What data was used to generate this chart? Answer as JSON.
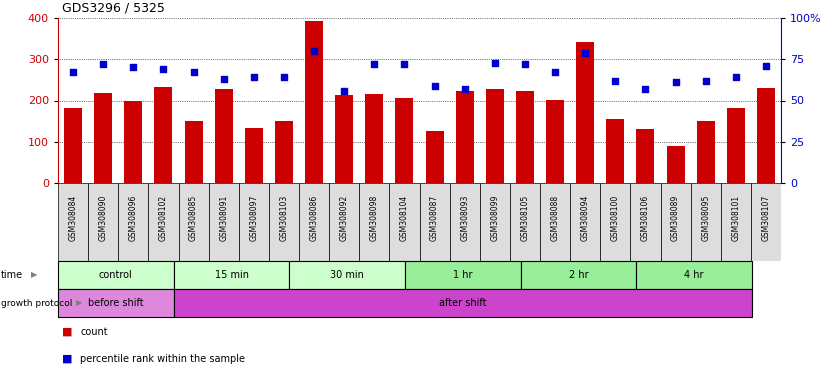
{
  "title": "GDS3296 / 5325",
  "samples": [
    "GSM308084",
    "GSM308090",
    "GSM308096",
    "GSM308102",
    "GSM308085",
    "GSM308091",
    "GSM308097",
    "GSM308103",
    "GSM308086",
    "GSM308092",
    "GSM308098",
    "GSM308104",
    "GSM308087",
    "GSM308093",
    "GSM308099",
    "GSM308105",
    "GSM308088",
    "GSM308094",
    "GSM308100",
    "GSM308106",
    "GSM308089",
    "GSM308095",
    "GSM308101",
    "GSM308107"
  ],
  "counts": [
    183,
    218,
    200,
    232,
    150,
    228,
    133,
    150,
    393,
    213,
    215,
    207,
    126,
    223,
    228,
    223,
    201,
    341,
    155,
    130,
    90,
    150,
    182,
    230
  ],
  "percentiles": [
    67,
    72,
    70,
    69,
    67,
    63,
    64,
    64,
    80,
    56,
    72,
    72,
    59,
    57,
    73,
    72,
    67,
    79,
    62,
    57,
    61,
    62,
    64,
    71
  ],
  "time_labels": [
    "control",
    "15 min",
    "30 min",
    "1 hr",
    "2 hr",
    "4 hr"
  ],
  "time_boundaries": [
    0,
    4,
    8,
    12,
    16,
    20,
    24
  ],
  "time_colors": [
    "#ccffcc",
    "#ccffcc",
    "#ccffcc",
    "#99ee99",
    "#99ee99",
    "#99ee99"
  ],
  "protocol_labels": [
    "before shift",
    "after shift"
  ],
  "protocol_boundaries": [
    0,
    4,
    24
  ],
  "protocol_colors": [
    "#dd88dd",
    "#cc55cc"
  ],
  "bar_color": "#cc0000",
  "dot_color": "#0000cc",
  "left_ylim": [
    0,
    400
  ],
  "right_ylim": [
    0,
    100
  ],
  "left_yticks": [
    0,
    100,
    200,
    300,
    400
  ],
  "right_yticks": [
    0,
    25,
    50,
    75,
    100
  ],
  "right_yticklabels": [
    "0",
    "25",
    "50",
    "75",
    "100%"
  ],
  "grid_values": [
    100,
    200,
    300
  ]
}
